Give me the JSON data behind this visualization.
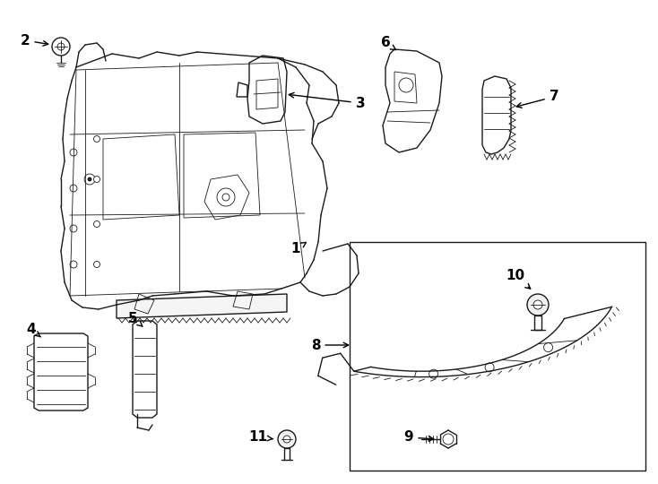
{
  "bg_color": "#ffffff",
  "line_color": "#1a1a1a",
  "text_color": "#000000",
  "fig_width": 7.34,
  "fig_height": 5.4,
  "dpi": 100
}
